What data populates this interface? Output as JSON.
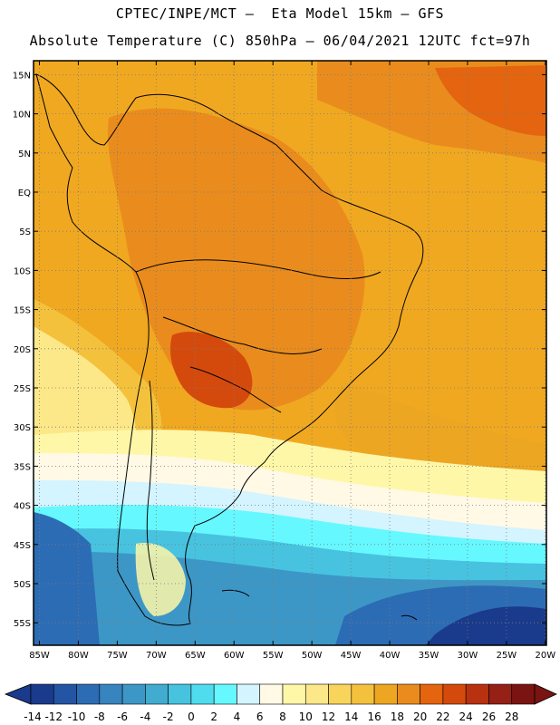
{
  "header": {
    "line1": "CPTEC/INPE/MCT –  Eta Model 15km – GFS",
    "line2": "Absolute Temperature (C) 850hPa – 06/04/2021 12UTC fct=97h"
  },
  "map": {
    "lat_labels": [
      "15N",
      "10N",
      "5N",
      "EQ",
      "5S",
      "10S",
      "15S",
      "20S",
      "25S",
      "30S",
      "35S",
      "40S",
      "45S",
      "50S",
      "55S"
    ],
    "lon_labels": [
      "85W",
      "80W",
      "75W",
      "70W",
      "65W",
      "60W",
      "55W",
      "50W",
      "45W",
      "40W",
      "35W",
      "30W",
      "25W",
      "20W"
    ]
  },
  "colorbar": {
    "labels": [
      "-14",
      "-12",
      "-10",
      "-8",
      "-6",
      "-4",
      "-2",
      "0",
      "2",
      "4",
      "6",
      "8",
      "10",
      "12",
      "14",
      "16",
      "18",
      "20",
      "22",
      "24",
      "26",
      "28"
    ],
    "colors": [
      "#1a3a8c",
      "#2454a4",
      "#2c6cb4",
      "#3784bf",
      "#3d97c6",
      "#42abd0",
      "#47c3e0",
      "#4fdcef",
      "#66f8ff",
      "#d4f4ff",
      "#fff9e6",
      "#fff7a8",
      "#fce889",
      "#f8d45c",
      "#f3c13c",
      "#eda622",
      "#e98c1d",
      "#e4640f",
      "#d44a0d",
      "#b83110",
      "#952016",
      "#7a1412"
    ]
  }
}
